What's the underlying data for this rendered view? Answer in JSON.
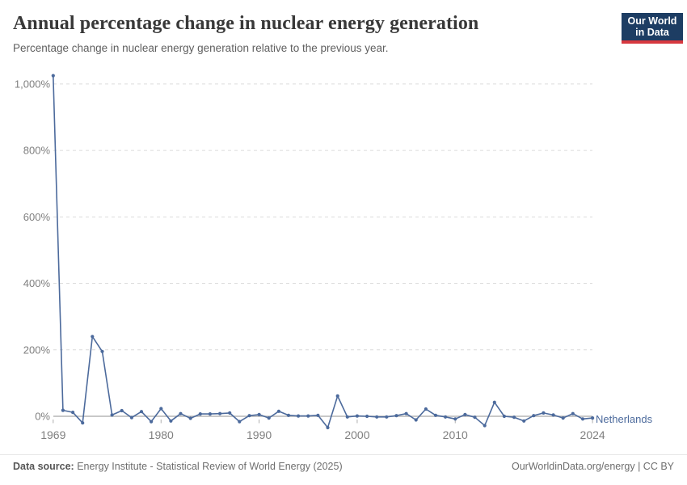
{
  "header": {
    "title": "Annual percentage change in nuclear energy generation",
    "subtitle": "Percentage change in nuclear energy generation relative to the previous year.",
    "logo": {
      "line1": "Our World",
      "line2": "in Data",
      "bg_color": "#1d3d63",
      "bar_color": "#d7383f"
    }
  },
  "chart_data": {
    "type": "line",
    "title": "Annual percentage change in nuclear energy generation",
    "subtitle": "Percentage change in nuclear energy generation relative to the previous year.",
    "xlabel": "",
    "ylabel": "",
    "xlim": [
      1969,
      2024
    ],
    "ylim": [
      -50,
      1050
    ],
    "grid": "horizontal-dashed",
    "legend_position": "end-of-line",
    "entity_label": "Netherlands",
    "line_color": "#4c6a9c",
    "xticks": [
      1969,
      1980,
      1990,
      2000,
      2010,
      2024
    ],
    "yticks": [
      {
        "value": 0,
        "label": "0%"
      },
      {
        "value": 200,
        "label": "200%"
      },
      {
        "value": 400,
        "label": "400%"
      },
      {
        "value": 600,
        "label": "600%"
      },
      {
        "value": 800,
        "label": "800%"
      },
      {
        "value": 1000,
        "label": "1,000%"
      }
    ],
    "series": [
      {
        "name": "Netherlands",
        "color": "#4c6a9c",
        "x": [
          1969,
          1970,
          1971,
          1972,
          1973,
          1974,
          1975,
          1976,
          1977,
          1978,
          1979,
          1980,
          1981,
          1982,
          1983,
          1984,
          1985,
          1986,
          1987,
          1988,
          1989,
          1990,
          1991,
          1992,
          1993,
          1994,
          1995,
          1996,
          1997,
          1998,
          1999,
          2000,
          2001,
          2002,
          2003,
          2004,
          2005,
          2006,
          2007,
          2008,
          2009,
          2010,
          2011,
          2012,
          2013,
          2014,
          2015,
          2016,
          2017,
          2018,
          2019,
          2020,
          2021,
          2022,
          2023,
          2024
        ],
        "values": [
          1025,
          18,
          12,
          -20,
          240,
          195,
          4,
          17,
          -4,
          14,
          -16,
          23,
          -14,
          8,
          -6,
          7,
          7,
          8,
          10,
          -16,
          2,
          5,
          -5,
          15,
          3,
          1,
          1,
          3,
          -34,
          61,
          -2,
          1,
          0,
          -2,
          -2,
          2,
          8,
          -11,
          22,
          3,
          -2,
          -8,
          5,
          -3,
          -28,
          42,
          0,
          -3,
          -14,
          2,
          10,
          4,
          -5,
          8,
          -8,
          -5
        ]
      }
    ]
  },
  "footer": {
    "source_prefix": "Data source:",
    "source_text": "Energy Institute - Statistical Review of World Energy (2025)",
    "credit_text": "OurWorldinData.org/energy | CC BY"
  }
}
